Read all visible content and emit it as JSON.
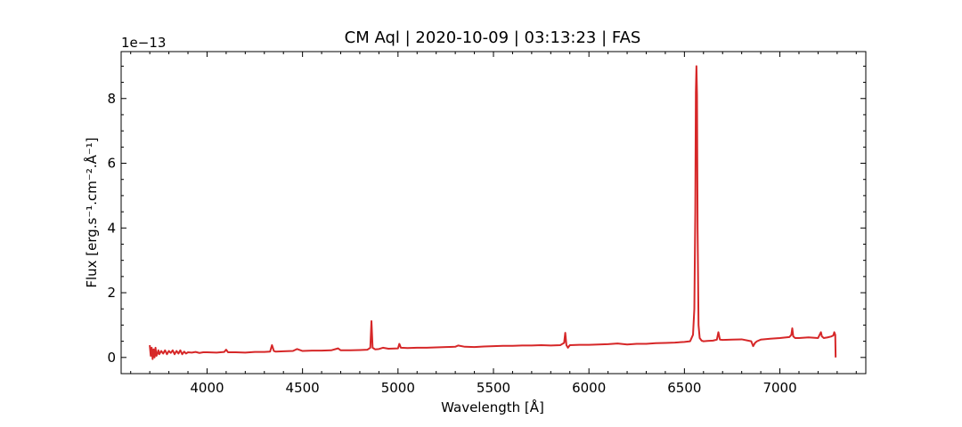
{
  "chart_data": {
    "type": "line",
    "title": "CM Aql | 2020-10-09 | 03:13:23 | FAS",
    "xlabel": "Wavelength [Å]",
    "ylabel": "Flux [erg.s⁻¹.cm⁻².Å⁻¹]",
    "y_offset_label": "1e−13",
    "y_multiplier": 1e-13,
    "xlim": [
      3550,
      7450
    ],
    "ylim": [
      -0.5,
      9.45
    ],
    "x_ticks": [
      4000,
      4500,
      5000,
      5500,
      6000,
      6500,
      7000
    ],
    "y_ticks": [
      0,
      2,
      4,
      6,
      8
    ],
    "grid": false,
    "line_color": "#d62728",
    "series": [
      {
        "x": [
          3700,
          3705,
          3710,
          3715,
          3720,
          3725,
          3730,
          3735,
          3740,
          3745,
          3750,
          3760,
          3770,
          3780,
          3790,
          3800,
          3810,
          3820,
          3830,
          3840,
          3850,
          3860,
          3870,
          3880,
          3890,
          3900,
          3920,
          3940,
          3960,
          3980,
          4000,
          4050,
          4090,
          4100,
          4110,
          4150,
          4200,
          4250,
          4300,
          4330,
          4340,
          4350,
          4360,
          4400,
          4450,
          4471,
          4500,
          4550,
          4600,
          4650,
          4686,
          4700,
          4750,
          4800,
          4840,
          4855,
          4861,
          4867,
          4880,
          4900,
          4921,
          4950,
          5000,
          5007,
          5015,
          5050,
          5100,
          5150,
          5200,
          5250,
          5300,
          5315,
          5350,
          5400,
          5450,
          5500,
          5550,
          5600,
          5650,
          5700,
          5750,
          5800,
          5850,
          5870,
          5876,
          5882,
          5890,
          5900,
          5950,
          6000,
          6050,
          6100,
          6150,
          6200,
          6250,
          6300,
          6350,
          6400,
          6450,
          6500,
          6530,
          6545,
          6552,
          6557,
          6560,
          6563,
          6566,
          6569,
          6574,
          6580,
          6590,
          6600,
          6620,
          6650,
          6670,
          6678,
          6686,
          6700,
          6750,
          6800,
          6850,
          6860,
          6870,
          6880,
          6900,
          6950,
          7000,
          7050,
          7060,
          7065,
          7070,
          7080,
          7100,
          7150,
          7200,
          7210,
          7215,
          7220,
          7230,
          7250,
          7270,
          7280,
          7285,
          7290,
          7292
        ],
        "y": [
          0.38,
          0.05,
          0.3,
          -0.05,
          0.25,
          0.0,
          0.3,
          0.05,
          0.12,
          0.22,
          0.1,
          0.2,
          0.12,
          0.22,
          0.1,
          0.2,
          0.14,
          0.22,
          0.1,
          0.2,
          0.12,
          0.22,
          0.1,
          0.18,
          0.12,
          0.16,
          0.15,
          0.17,
          0.14,
          0.16,
          0.16,
          0.15,
          0.17,
          0.24,
          0.16,
          0.16,
          0.15,
          0.17,
          0.17,
          0.18,
          0.38,
          0.2,
          0.18,
          0.19,
          0.2,
          0.26,
          0.2,
          0.21,
          0.21,
          0.22,
          0.28,
          0.22,
          0.22,
          0.23,
          0.24,
          0.3,
          1.12,
          0.3,
          0.25,
          0.26,
          0.3,
          0.27,
          0.28,
          0.42,
          0.3,
          0.29,
          0.3,
          0.3,
          0.31,
          0.32,
          0.33,
          0.37,
          0.33,
          0.32,
          0.34,
          0.35,
          0.36,
          0.36,
          0.37,
          0.37,
          0.38,
          0.37,
          0.38,
          0.45,
          0.76,
          0.38,
          0.3,
          0.38,
          0.39,
          0.39,
          0.4,
          0.41,
          0.43,
          0.4,
          0.42,
          0.42,
          0.44,
          0.45,
          0.46,
          0.48,
          0.5,
          0.7,
          1.5,
          4.5,
          8.2,
          9.0,
          8.1,
          4.0,
          1.0,
          0.6,
          0.52,
          0.5,
          0.51,
          0.52,
          0.55,
          0.78,
          0.55,
          0.54,
          0.55,
          0.56,
          0.5,
          0.35,
          0.45,
          0.5,
          0.55,
          0.58,
          0.6,
          0.63,
          0.7,
          0.9,
          0.65,
          0.6,
          0.6,
          0.62,
          0.6,
          0.72,
          0.78,
          0.65,
          0.6,
          0.62,
          0.65,
          0.68,
          0.78,
          0.7,
          0.0
        ]
      }
    ]
  }
}
